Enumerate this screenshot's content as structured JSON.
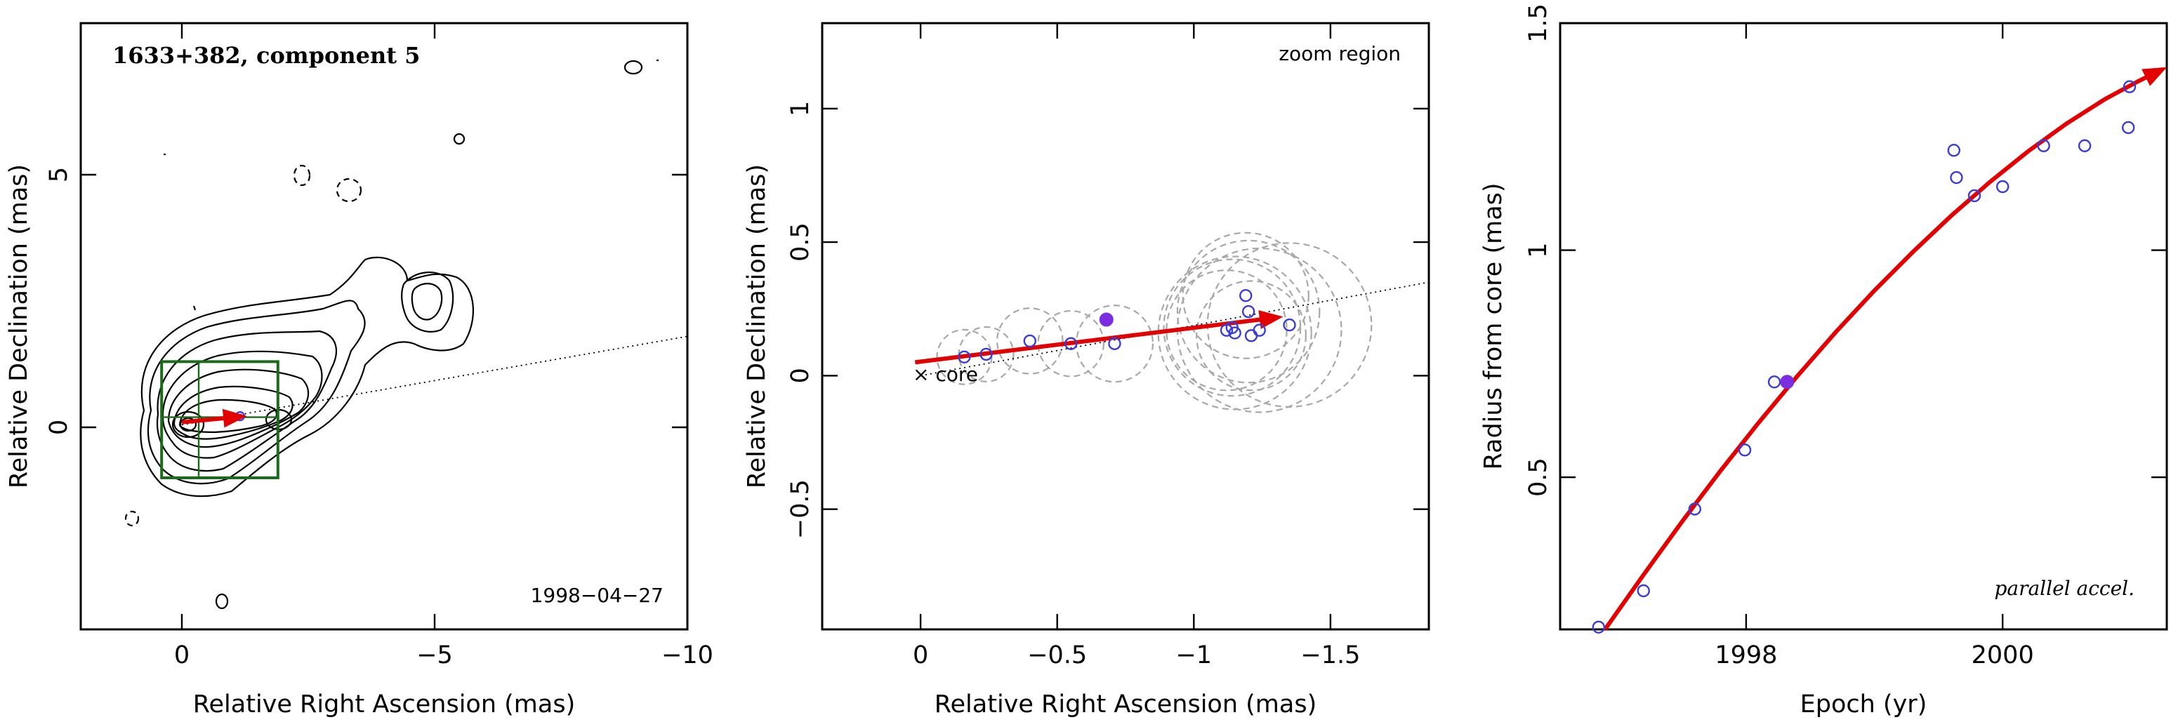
{
  "panels": {
    "left": {
      "title": "1633+382, component 5",
      "date": "1998−04−27",
      "xlabel": "Relative Right Ascension (mas)",
      "ylabel": "Relative Declination (mas)"
    },
    "middle": {
      "region_label": "zoom region",
      "core_label": "× core",
      "xlabel": "Relative Right Ascension (mas)",
      "ylabel": "Relative Declination (mas)"
    },
    "right": {
      "note": "parallel accel.",
      "xlabel": "Epoch (yr)",
      "ylabel": "Radius from core (mas)"
    }
  },
  "chart_data": [
    {
      "type": "contour",
      "title": "1633+382, component 5",
      "annotation": "1998-04-27",
      "xlabel": "Relative Right Ascension (mas)",
      "ylabel": "Relative Declination (mas)",
      "xlim": [
        2,
        -10
      ],
      "ylim": [
        -4,
        8
      ],
      "xticks": [
        0,
        -5,
        -10
      ],
      "xtick_labels": [
        "0",
        "−5",
        "−10"
      ],
      "yticks": [
        0,
        5
      ],
      "ytick_labels": [
        "0",
        "5"
      ],
      "zoom_box": {
        "x": [
          0.4,
          -1.9
        ],
        "y": [
          -1.0,
          1.3
        ]
      },
      "velocity_vector": {
        "from": [
          0,
          0.1
        ],
        "to": [
          -1.25,
          0.22
        ]
      },
      "position_angle_line": {
        "from": [
          0,
          0.05
        ],
        "to": [
          -10,
          1.8
        ]
      }
    },
    {
      "type": "scatter",
      "xlabel": "Relative Right Ascension (mas)",
      "ylabel": "Relative Declination (mas)",
      "xlim": [
        0.36,
        -1.86
      ],
      "ylim": [
        -0.95,
        1.32
      ],
      "xticks": [
        0,
        -0.5,
        -1,
        -1.5
      ],
      "xtick_labels": [
        "0",
        "−0.5",
        "−1",
        "−1.5"
      ],
      "yticks": [
        -0.5,
        0,
        0.5,
        1
      ],
      "ytick_labels": [
        "−0.5",
        "0",
        "0.5",
        "1"
      ],
      "points": [
        {
          "x": -0.16,
          "y": 0.07,
          "err": 0.1
        },
        {
          "x": -0.24,
          "y": 0.08,
          "err": 0.1
        },
        {
          "x": -0.4,
          "y": 0.13,
          "err": 0.12
        },
        {
          "x": -0.55,
          "y": 0.12,
          "err": 0.12
        },
        {
          "x": -0.71,
          "y": 0.12,
          "err": 0.14
        },
        {
          "x": -1.12,
          "y": 0.17,
          "err": 0.22
        },
        {
          "x": -1.14,
          "y": 0.18,
          "err": 0.25
        },
        {
          "x": -1.15,
          "y": 0.16,
          "err": 0.28
        },
        {
          "x": -1.19,
          "y": 0.3,
          "err": 0.23
        },
        {
          "x": -1.2,
          "y": 0.24,
          "err": 0.26
        },
        {
          "x": -1.21,
          "y": 0.15,
          "err": 0.2
        },
        {
          "x": -1.24,
          "y": 0.17,
          "err": 0.3
        },
        {
          "x": -1.35,
          "y": 0.19,
          "err": 0.3
        }
      ],
      "highlight": {
        "x": -0.68,
        "y": 0.21
      },
      "core": {
        "x": 0,
        "y": 0
      },
      "velocity_vector": {
        "from": [
          0.02,
          0.05
        ],
        "to": [
          -1.32,
          0.22
        ]
      },
      "position_angle_line": {
        "from": [
          0,
          0
        ],
        "to": [
          -1.86,
          0.35
        ]
      }
    },
    {
      "type": "scatter",
      "xlabel": "Epoch (yr)",
      "ylabel": "Radius from core (mas)",
      "xlim": [
        1996.55,
        2001.28
      ],
      "ylim": [
        0.165,
        1.5
      ],
      "xticks": [
        1998,
        2000
      ],
      "xtick_labels": [
        "1998",
        "2000"
      ],
      "yticks": [
        0.5,
        1,
        1.5
      ],
      "ytick_labels": [
        "0.5",
        "1",
        "1.5"
      ],
      "points": [
        {
          "x": 1996.85,
          "y": 0.17
        },
        {
          "x": 1997.2,
          "y": 0.25
        },
        {
          "x": 1997.6,
          "y": 0.43
        },
        {
          "x": 1997.99,
          "y": 0.56
        },
        {
          "x": 1998.22,
          "y": 0.71
        },
        {
          "x": 1999.62,
          "y": 1.22
        },
        {
          "x": 1999.64,
          "y": 1.16
        },
        {
          "x": 1999.78,
          "y": 1.12
        },
        {
          "x": 2000.0,
          "y": 1.14
        },
        {
          "x": 2000.32,
          "y": 1.23
        },
        {
          "x": 2000.64,
          "y": 1.23
        },
        {
          "x": 2000.98,
          "y": 1.27
        },
        {
          "x": 2000.99,
          "y": 1.36
        }
      ],
      "highlight": {
        "x": 1998.32,
        "y": 0.71
      },
      "fit_curve": {
        "x": [
          1996.9,
          1997.2,
          1997.5,
          1997.8,
          1998.1,
          1998.4,
          1998.7,
          1999.0,
          1999.3,
          1999.6,
          1999.9,
          2000.2,
          2000.5,
          2000.8,
          2001.05,
          2001.18
        ],
        "y": [
          0.165,
          0.285,
          0.402,
          0.514,
          0.621,
          0.723,
          0.82,
          0.911,
          0.996,
          1.076,
          1.15,
          1.218,
          1.279,
          1.333,
          1.371,
          1.389
        ]
      }
    }
  ]
}
